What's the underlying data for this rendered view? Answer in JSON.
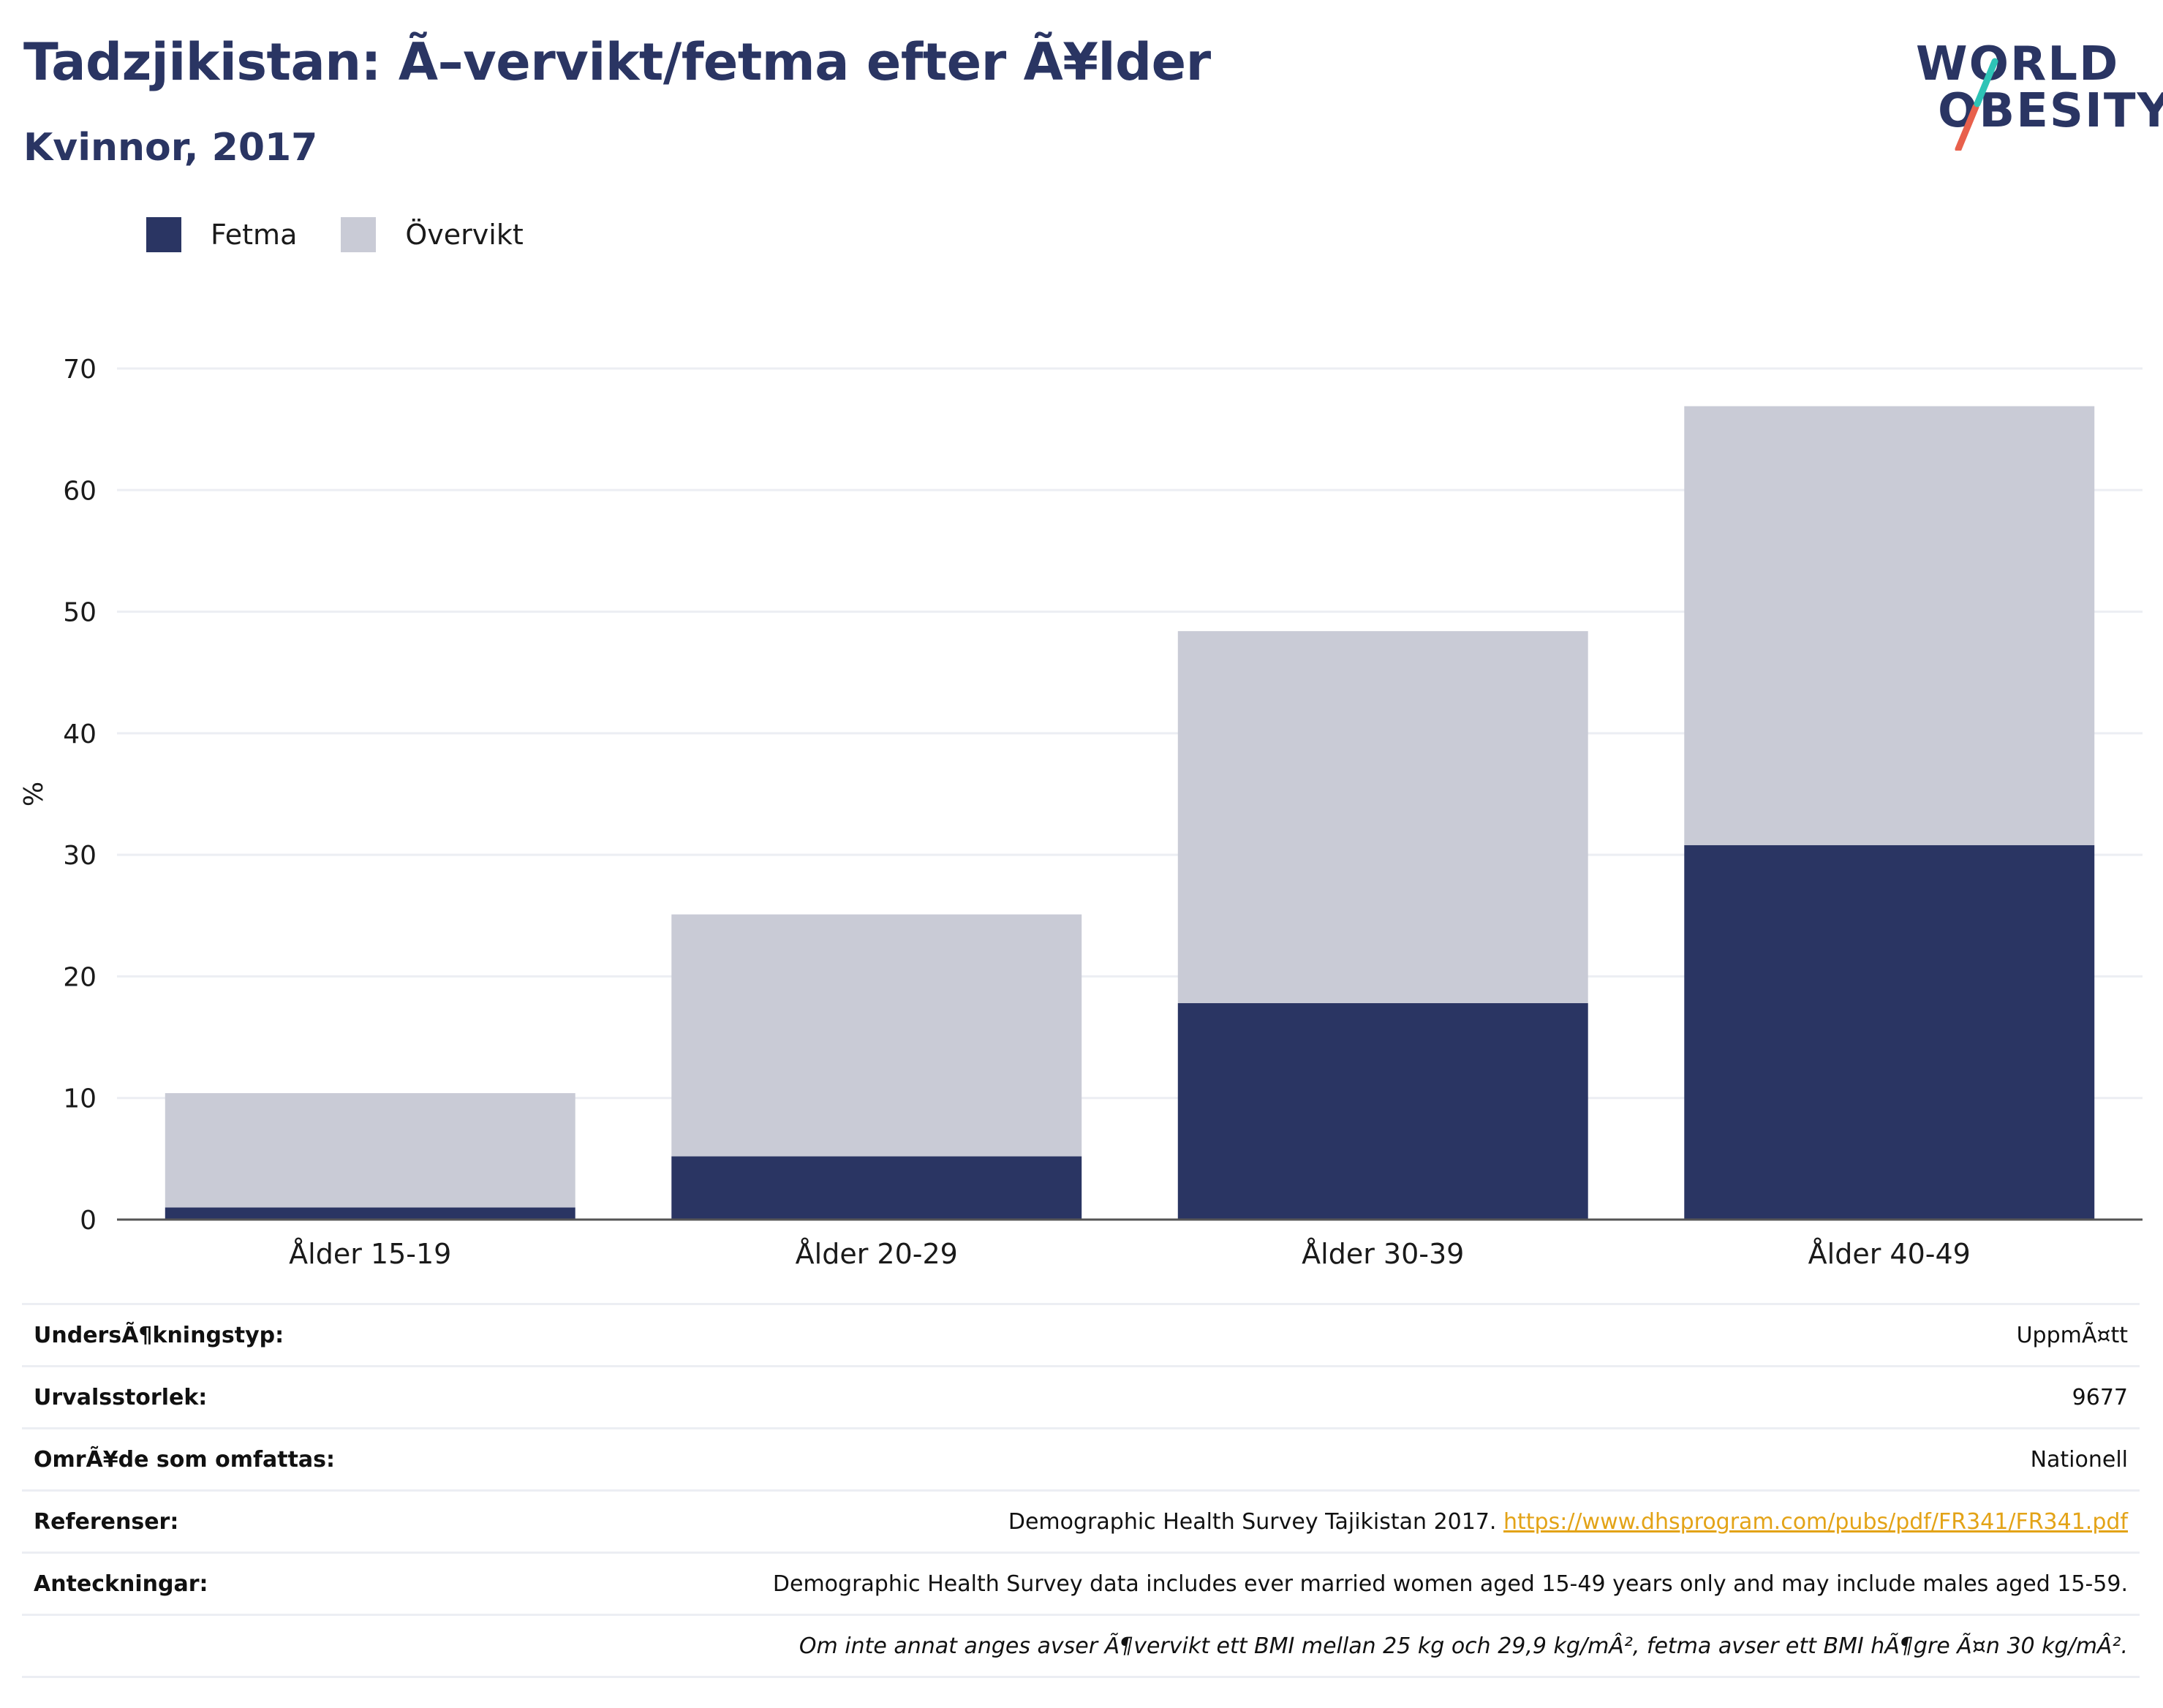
{
  "header": {
    "title": "Tadzjikistan: Ã–vervikt/fetma efter Ã¥lder",
    "subtitle": "Kvinnor, 2017"
  },
  "logo": {
    "line1": "WORLD",
    "line2": "OBESITY",
    "accent_colors": [
      "#2ec4b6",
      "#e8604c"
    ]
  },
  "colors": {
    "fetma": "#2a3563",
    "overvikt": "#c9cbd6",
    "link": "#e3a317",
    "text": "#2a3563"
  },
  "legend": [
    {
      "label": "Fetma",
      "color": "#2a3563"
    },
    {
      "label": "Övervikt",
      "color": "#c9cbd6"
    }
  ],
  "chart_data": {
    "type": "bar",
    "stacked": true,
    "categories": [
      "Ålder 15-19",
      "Ålder 20-29",
      "Ålder 30-39",
      "Ålder 40-49"
    ],
    "series": [
      {
        "name": "Fetma",
        "values": [
          1.0,
          5.2,
          17.8,
          30.8
        ]
      },
      {
        "name": "Övervikt",
        "values": [
          9.4,
          19.9,
          30.6,
          36.1
        ]
      }
    ],
    "totals": [
      10.4,
      25.1,
      48.4,
      66.9
    ],
    "ylabel": "%",
    "ylim": [
      0,
      70
    ],
    "yticks": [
      0,
      10,
      20,
      30,
      40,
      50,
      60,
      70
    ],
    "grid": true,
    "legend_position": "top-left"
  },
  "info": [
    {
      "label": "UndersÃ¶kningstyp:",
      "value": "UppmÃ¤tt"
    },
    {
      "label": "Urvalsstorlek:",
      "value": "9677"
    },
    {
      "label": "OmrÃ¥de som omfattas:",
      "value": "Nationell"
    },
    {
      "label": "Referenser:",
      "value": "Demographic Health Survey Tajikistan 2017. ",
      "link": "https://www.dhsprogram.com/pubs/pdf/FR341/FR341.pdf"
    },
    {
      "label": "Anteckningar:",
      "value": "Demographic Health Survey data includes ever married women aged 15-49 years only and may include males aged 15-59."
    },
    {
      "label": "",
      "value": "Om inte annat anges avser Ã¶vervikt ett BMI mellan 25 kg och 29,9 kg/mÂ², fetma avser ett BMI hÃ¶gre Ã¤n 30 kg/mÂ²."
    }
  ]
}
